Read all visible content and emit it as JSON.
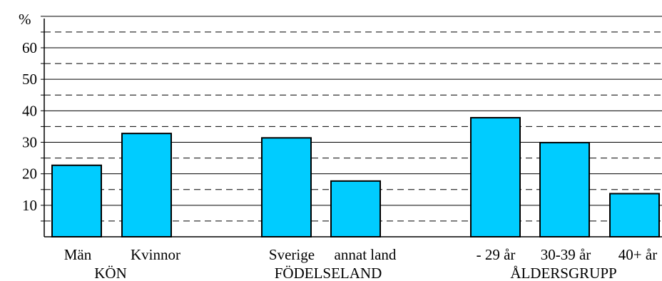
{
  "chart_data": {
    "type": "bar",
    "unit_label": "%",
    "categories": [
      "Män",
      "Kvinnor",
      "Sverige",
      "annat land",
      "- 29 år",
      "30-39 år",
      "40+ år"
    ],
    "values": [
      22.7,
      32.8,
      31.4,
      17.7,
      37.8,
      29.9,
      13.7
    ],
    "groups": [
      {
        "label": "KÖN",
        "members": [
          "Män",
          "Kvinnor"
        ]
      },
      {
        "label": "FÖDELSELAND",
        "members": [
          "Sverige",
          "annat land"
        ]
      },
      {
        "label": "ÅLDERSGRUPP",
        "members": [
          "- 29 år",
          "30-39 år",
          "40+ år"
        ]
      }
    ],
    "y_ticks": [
      10,
      20,
      30,
      40,
      50,
      60
    ],
    "ylim": [
      0,
      70
    ],
    "grid": {
      "solid_every": 10,
      "dashed_every": 5
    },
    "bar_color": "#00ccff",
    "xlabel": "",
    "ylabel": ""
  }
}
